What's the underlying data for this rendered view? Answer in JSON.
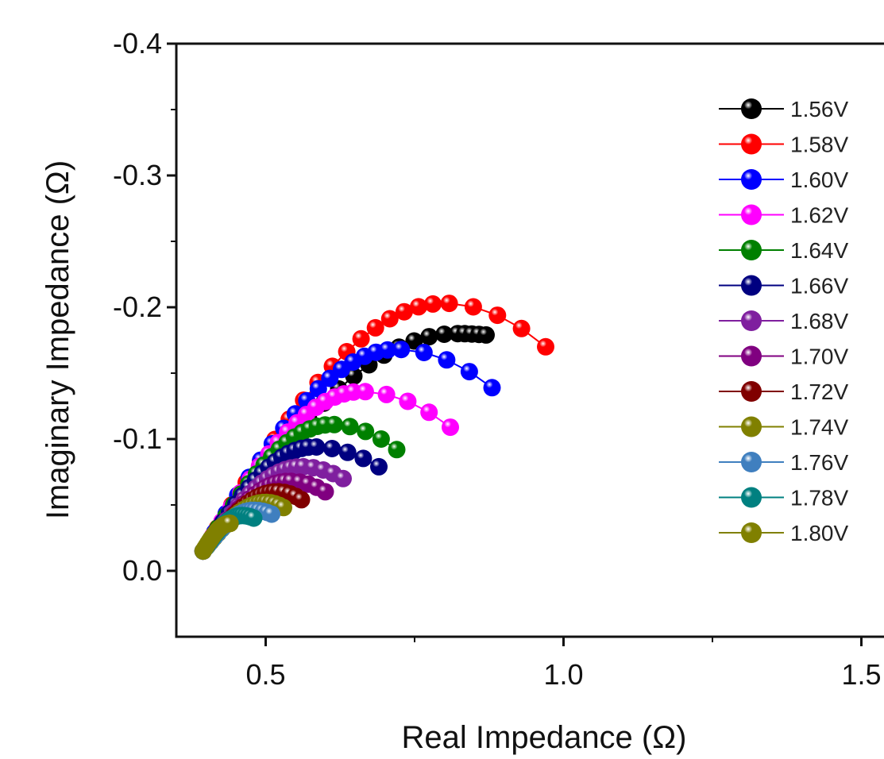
{
  "chart_data": {
    "type": "scatter",
    "title": "",
    "xlabel": "Real Impedance (Ω)",
    "ylabel": "Imaginary Impedance (Ω)",
    "xlim": [
      0.35,
      1.55
    ],
    "ylim": [
      0.05,
      -0.4
    ],
    "x_ticks": [
      "0.5",
      "1.0",
      "1.5"
    ],
    "x_tick_values": [
      0.5,
      1.0,
      1.5
    ],
    "y_ticks": [
      "-0.4",
      "-0.3",
      "-0.2",
      "-0.1",
      "0.0"
    ],
    "y_tick_values": [
      -0.4,
      -0.3,
      -0.2,
      -0.1,
      0.0
    ],
    "legend_position": "right",
    "grid": false,
    "series": [
      {
        "name": "1.56V",
        "color": "#000000",
        "apex": [
          0.82,
          -0.18
        ],
        "peak": -0.18,
        "end": [
          0.87,
          -0.179
        ]
      },
      {
        "name": "1.58V",
        "color": "#ff0000",
        "apex": [
          0.8,
          -0.203
        ],
        "peak": -0.203,
        "end": [
          0.97,
          -0.17
        ]
      },
      {
        "name": "1.60V",
        "color": "#0000ff",
        "apex": [
          0.72,
          -0.168
        ],
        "peak": -0.168,
        "end": [
          0.88,
          -0.139
        ]
      },
      {
        "name": "1.62V",
        "color": "#ff00ff",
        "apex": [
          0.66,
          -0.136
        ],
        "peak": -0.136,
        "end": [
          0.81,
          -0.109
        ]
      },
      {
        "name": "1.64V",
        "color": "#008000",
        "apex": [
          0.61,
          -0.111
        ],
        "peak": -0.111,
        "end": [
          0.72,
          -0.092
        ]
      },
      {
        "name": "1.66V",
        "color": "#000080",
        "apex": [
          0.58,
          -0.094
        ],
        "peak": -0.094,
        "end": [
          0.69,
          -0.079
        ]
      },
      {
        "name": "1.68V",
        "color": "#7f1f9f",
        "apex": [
          0.56,
          -0.079
        ],
        "peak": -0.079,
        "end": [
          0.63,
          -0.07
        ]
      },
      {
        "name": "1.70V",
        "color": "#800080",
        "apex": [
          0.54,
          -0.068
        ],
        "peak": -0.068,
        "end": [
          0.6,
          -0.06
        ]
      },
      {
        "name": "1.72V",
        "color": "#800000",
        "apex": [
          0.52,
          -0.06
        ],
        "peak": -0.06,
        "end": [
          0.56,
          -0.054
        ]
      },
      {
        "name": "1.74V",
        "color": "#808000",
        "apex": [
          0.5,
          -0.052
        ],
        "peak": -0.052,
        "end": [
          0.53,
          -0.048
        ]
      },
      {
        "name": "1.76V",
        "color": "#3f7fbf",
        "apex": [
          0.48,
          -0.046
        ],
        "peak": -0.046,
        "end": [
          0.51,
          -0.043
        ]
      },
      {
        "name": "1.78V",
        "color": "#008080",
        "apex": [
          0.46,
          -0.042
        ],
        "peak": -0.042,
        "end": [
          0.48,
          -0.04
        ]
      },
      {
        "name": "1.80V",
        "color": "#808000",
        "apex": [
          0.44,
          -0.036
        ],
        "peak": -0.036,
        "end": [
          0.44,
          -0.036
        ]
      }
    ]
  }
}
